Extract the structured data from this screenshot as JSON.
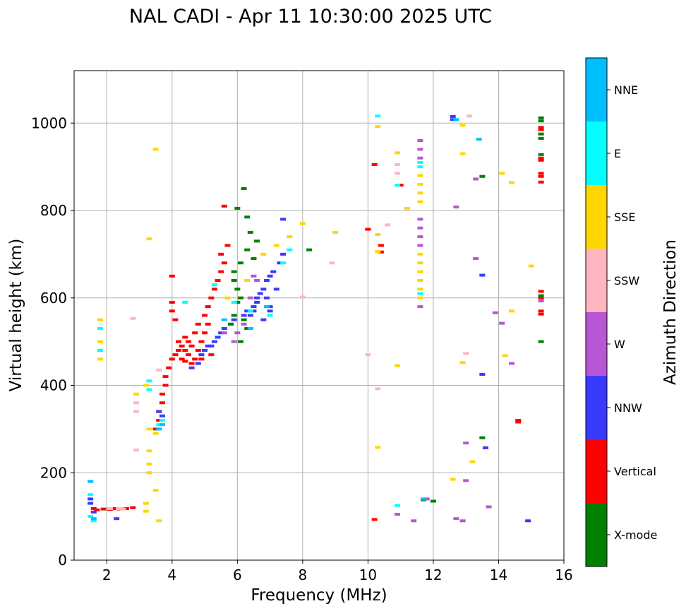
{
  "chart_data": {
    "type": "scatter",
    "title": "NAL CADI - Apr 11 10:30:00 2025 UTC",
    "xlabel": "Frequency (MHz)",
    "ylabel": "Virtual height (km)",
    "xlim": [
      1,
      16
    ],
    "ylim": [
      0,
      1120
    ],
    "xticks": [
      2,
      4,
      6,
      8,
      10,
      12,
      14,
      16
    ],
    "yticks": [
      0,
      200,
      400,
      600,
      800,
      1000
    ],
    "grid": true,
    "colorbar": {
      "label": "Azimuth Direction",
      "categories": [
        {
          "name": "X-mode",
          "color": "#008000"
        },
        {
          "name": "Vertical",
          "color": "#ff0000"
        },
        {
          "name": "NNW",
          "color": "#3a3aff"
        },
        {
          "name": "W",
          "color": "#b856d6"
        },
        {
          "name": "SSW",
          "color": "#ffb6c1"
        },
        {
          "name": "SSE",
          "color": "#ffd700"
        },
        {
          "name": "E",
          "color": "#00ffff"
        },
        {
          "name": "NNE",
          "color": "#00bfff"
        }
      ]
    },
    "series": [
      {
        "name": "Vertical",
        "points": [
          [
            1.6,
            118
          ],
          [
            1.7,
            115
          ],
          [
            1.9,
            117
          ],
          [
            2.1,
            116
          ],
          [
            2.2,
            118
          ],
          [
            2.4,
            117
          ],
          [
            2.6,
            118
          ],
          [
            2.8,
            120
          ],
          [
            3.5,
            300
          ],
          [
            3.6,
            320
          ],
          [
            3.6,
            340
          ],
          [
            3.7,
            360
          ],
          [
            3.7,
            380
          ],
          [
            3.8,
            400
          ],
          [
            3.8,
            420
          ],
          [
            3.9,
            440
          ],
          [
            4.0,
            460
          ],
          [
            4.1,
            470
          ],
          [
            4.2,
            480
          ],
          [
            4.2,
            500
          ],
          [
            4.3,
            490
          ],
          [
            4.4,
            480
          ],
          [
            4.4,
            510
          ],
          [
            4.5,
            470
          ],
          [
            4.5,
            500
          ],
          [
            4.6,
            450
          ],
          [
            4.6,
            490
          ],
          [
            4.7,
            460
          ],
          [
            4.7,
            520
          ],
          [
            4.8,
            480
          ],
          [
            4.8,
            540
          ],
          [
            4.9,
            500
          ],
          [
            5.0,
            520
          ],
          [
            5.0,
            560
          ],
          [
            5.1,
            540
          ],
          [
            5.1,
            580
          ],
          [
            5.2,
            600
          ],
          [
            5.3,
            620
          ],
          [
            5.4,
            640
          ],
          [
            5.5,
            660
          ],
          [
            5.5,
            700
          ],
          [
            5.6,
            680
          ],
          [
            5.7,
            720
          ],
          [
            5.6,
            810
          ],
          [
            4.0,
            590
          ],
          [
            4.0,
            570
          ],
          [
            4.1,
            550
          ],
          [
            4.0,
            650
          ],
          [
            4.3,
            460
          ],
          [
            4.4,
            455
          ],
          [
            4.9,
            460
          ],
          [
            5.2,
            470
          ],
          [
            10.0,
            757
          ],
          [
            10.4,
            720
          ],
          [
            10.4,
            705
          ],
          [
            11.0,
            858
          ],
          [
            10.2,
            905
          ],
          [
            10.2,
            93
          ],
          [
            15.3,
            985
          ],
          [
            15.3,
            990
          ],
          [
            15.3,
            885
          ],
          [
            15.3,
            878
          ],
          [
            15.3,
            920
          ],
          [
            15.3,
            915
          ],
          [
            15.3,
            865
          ],
          [
            15.3,
            563
          ],
          [
            15.3,
            570
          ],
          [
            15.3,
            600
          ],
          [
            15.3,
            615
          ],
          [
            14.6,
            320
          ],
          [
            14.6,
            316
          ]
        ]
      },
      {
        "name": "NNW",
        "points": [
          [
            1.5,
            130
          ],
          [
            1.5,
            140
          ],
          [
            1.6,
            110
          ],
          [
            2.3,
            95
          ],
          [
            3.6,
            340
          ],
          [
            3.7,
            330
          ],
          [
            4.6,
            440
          ],
          [
            4.8,
            450
          ],
          [
            4.9,
            470
          ],
          [
            5.0,
            480
          ],
          [
            5.1,
            490
          ],
          [
            5.2,
            490
          ],
          [
            5.3,
            500
          ],
          [
            5.4,
            510
          ],
          [
            5.5,
            520
          ],
          [
            5.6,
            530
          ],
          [
            5.8,
            540
          ],
          [
            5.9,
            550
          ],
          [
            6.2,
            560
          ],
          [
            6.3,
            570
          ],
          [
            6.4,
            560
          ],
          [
            6.5,
            580
          ],
          [
            6.6,
            590
          ],
          [
            6.6,
            600
          ],
          [
            6.7,
            610
          ],
          [
            6.8,
            620
          ],
          [
            6.9,
            600
          ],
          [
            6.9,
            640
          ],
          [
            7.0,
            580
          ],
          [
            7.0,
            650
          ],
          [
            7.1,
            660
          ],
          [
            7.2,
            620
          ],
          [
            7.3,
            680
          ],
          [
            7.4,
            700
          ],
          [
            7.4,
            780
          ],
          [
            7.0,
            570
          ],
          [
            6.8,
            550
          ],
          [
            6.5,
            570
          ],
          [
            13.5,
            425
          ],
          [
            13.5,
            652
          ],
          [
            13.6,
            257
          ],
          [
            14.9,
            90
          ],
          [
            12.6,
            1015
          ],
          [
            12.6,
            1008
          ]
        ]
      },
      {
        "name": "X-mode",
        "points": [
          [
            5.8,
            540
          ],
          [
            5.9,
            560
          ],
          [
            6.0,
            590
          ],
          [
            6.1,
            600
          ],
          [
            6.0,
            620
          ],
          [
            5.9,
            640
          ],
          [
            6.2,
            550
          ],
          [
            6.3,
            530
          ],
          [
            6.1,
            500
          ],
          [
            6.0,
            805
          ],
          [
            6.2,
            850
          ],
          [
            6.3,
            785
          ],
          [
            6.4,
            750
          ],
          [
            6.6,
            730
          ],
          [
            6.3,
            710
          ],
          [
            6.1,
            680
          ],
          [
            5.9,
            660
          ],
          [
            6.5,
            690
          ],
          [
            8.2,
            710
          ],
          [
            11.7,
            138
          ],
          [
            12.0,
            135
          ],
          [
            13.5,
            280
          ],
          [
            13.5,
            878
          ],
          [
            15.3,
            1012
          ],
          [
            15.3,
            1005
          ],
          [
            15.3,
            975
          ],
          [
            15.3,
            965
          ],
          [
            15.3,
            928
          ],
          [
            15.3,
            605
          ],
          [
            15.3,
            500
          ]
        ]
      },
      {
        "name": "W",
        "points": [
          [
            6.0,
            520
          ],
          [
            6.2,
            540
          ],
          [
            6.4,
            600
          ],
          [
            6.5,
            650
          ],
          [
            6.6,
            640
          ],
          [
            5.6,
            520
          ],
          [
            5.9,
            500
          ],
          [
            11.6,
            960
          ],
          [
            11.6,
            940
          ],
          [
            11.6,
            920
          ],
          [
            11.6,
            780
          ],
          [
            11.6,
            760
          ],
          [
            11.6,
            740
          ],
          [
            11.6,
            720
          ],
          [
            11.6,
            580
          ],
          [
            12.7,
            808
          ],
          [
            13.3,
            690
          ],
          [
            13.3,
            872
          ],
          [
            12.7,
            95
          ],
          [
            12.9,
            90
          ],
          [
            13.0,
            268
          ],
          [
            13.0,
            182
          ],
          [
            13.7,
            122
          ],
          [
            13.9,
            566
          ],
          [
            14.1,
            542
          ],
          [
            14.4,
            450
          ],
          [
            15.3,
            593
          ],
          [
            11.4,
            90
          ],
          [
            10.9,
            105
          ],
          [
            11.8,
            140
          ]
        ]
      },
      {
        "name": "SSW",
        "points": [
          [
            2.9,
            360
          ],
          [
            2.9,
            340
          ],
          [
            3.6,
            435
          ],
          [
            2.9,
            252
          ],
          [
            2.8,
            553
          ],
          [
            8.0,
            602
          ],
          [
            8.9,
            680
          ],
          [
            10.6,
            767
          ],
          [
            10.0,
            470
          ],
          [
            10.3,
            392
          ],
          [
            10.9,
            905
          ],
          [
            10.9,
            885
          ],
          [
            13.0,
            473
          ],
          [
            2.4,
            118
          ],
          [
            2.1,
            118
          ],
          [
            2.5,
            117
          ],
          [
            11.6,
            640
          ],
          [
            13.1,
            1016
          ]
        ]
      },
      {
        "name": "SSE",
        "points": [
          [
            1.8,
            550
          ],
          [
            1.8,
            500
          ],
          [
            1.8,
            460
          ],
          [
            2.9,
            380
          ],
          [
            3.2,
            400
          ],
          [
            3.3,
            300
          ],
          [
            3.3,
            250
          ],
          [
            3.3,
            220
          ],
          [
            3.3,
            200
          ],
          [
            3.2,
            130
          ],
          [
            3.2,
            112
          ],
          [
            3.5,
            160
          ],
          [
            3.5,
            290
          ],
          [
            3.6,
            90
          ],
          [
            3.5,
            940
          ],
          [
            3.3,
            735
          ],
          [
            5.7,
            600
          ],
          [
            6.3,
            640
          ],
          [
            6.8,
            700
          ],
          [
            7.2,
            720
          ],
          [
            7.6,
            740
          ],
          [
            8.0,
            770
          ],
          [
            9.0,
            750
          ],
          [
            10.3,
            992
          ],
          [
            10.3,
            745
          ],
          [
            10.3,
            706
          ],
          [
            10.3,
            258
          ],
          [
            10.9,
            932
          ],
          [
            10.9,
            445
          ],
          [
            11.2,
            805
          ],
          [
            11.6,
            880
          ],
          [
            11.6,
            860
          ],
          [
            11.6,
            840
          ],
          [
            11.6,
            820
          ],
          [
            11.6,
            700
          ],
          [
            11.6,
            680
          ],
          [
            11.6,
            660
          ],
          [
            11.6,
            640
          ],
          [
            11.6,
            620
          ],
          [
            11.6,
            600
          ],
          [
            12.6,
            185
          ],
          [
            12.9,
            930
          ],
          [
            12.9,
            995
          ],
          [
            12.9,
            452
          ],
          [
            13.2,
            225
          ],
          [
            14.1,
            885
          ],
          [
            14.2,
            468
          ],
          [
            14.4,
            864
          ],
          [
            14.4,
            570
          ],
          [
            15.0,
            673
          ]
        ]
      },
      {
        "name": "E",
        "points": [
          [
            1.5,
            100
          ],
          [
            1.5,
            150
          ],
          [
            1.5,
            180
          ],
          [
            1.6,
            90
          ],
          [
            1.8,
            530
          ],
          [
            1.8,
            480
          ],
          [
            3.3,
            390
          ],
          [
            3.3,
            410
          ],
          [
            3.6,
            310
          ],
          [
            3.7,
            320
          ],
          [
            4.4,
            590
          ],
          [
            5.3,
            630
          ],
          [
            5.9,
            590
          ],
          [
            6.4,
            570
          ],
          [
            7.0,
            560
          ],
          [
            7.4,
            680
          ],
          [
            7.6,
            710
          ],
          [
            10.3,
            1016
          ],
          [
            10.9,
            858
          ],
          [
            10.9,
            125
          ],
          [
            11.6,
            910
          ],
          [
            11.6,
            900
          ],
          [
            11.6,
            610
          ]
        ]
      },
      {
        "name": "NNE",
        "points": [
          [
            1.5,
            180
          ],
          [
            1.6,
            95
          ],
          [
            3.6,
            300
          ],
          [
            3.7,
            310
          ],
          [
            5.6,
            550
          ],
          [
            6.4,
            530
          ],
          [
            6.9,
            580
          ],
          [
            13.4,
            963
          ],
          [
            12.7,
            1008
          ],
          [
            11.7,
            140
          ]
        ]
      }
    ]
  }
}
